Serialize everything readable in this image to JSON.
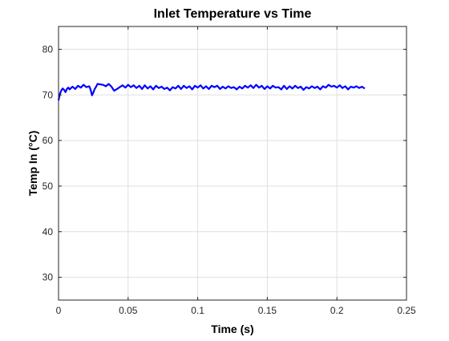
{
  "chart_data": {
    "type": "line",
    "title": "Inlet Temperature vs Time",
    "xlabel": "Time (s)",
    "ylabel": "Temp In (°C)",
    "xlim": [
      0,
      0.25
    ],
    "ylim": [
      25,
      85
    ],
    "xticks": [
      0,
      0.05,
      0.1,
      0.15,
      0.2,
      0.25
    ],
    "xtick_labels": [
      "0",
      "0.05",
      "0.1",
      "0.15",
      "0.2",
      "0.25"
    ],
    "yticks": [
      30,
      40,
      50,
      60,
      70,
      80
    ],
    "ytick_labels": [
      "30",
      "40",
      "50",
      "60",
      "70",
      "80"
    ],
    "grid": true,
    "series": [
      {
        "color": "#0000ff",
        "x": [
          0,
          0.001,
          0.002,
          0.003,
          0.004,
          0.005,
          0.006,
          0.007,
          0.008,
          0.009,
          0.01,
          0.012,
          0.014,
          0.016,
          0.018,
          0.02,
          0.022,
          0.023,
          0.024,
          0.025,
          0.026,
          0.027,
          0.028,
          0.03,
          0.032,
          0.034,
          0.036,
          0.038,
          0.04,
          0.042,
          0.044,
          0.046,
          0.048,
          0.05,
          0.052,
          0.054,
          0.056,
          0.058,
          0.06,
          0.062,
          0.064,
          0.066,
          0.068,
          0.07,
          0.072,
          0.074,
          0.076,
          0.078,
          0.08,
          0.082,
          0.084,
          0.086,
          0.088,
          0.09,
          0.092,
          0.094,
          0.096,
          0.098,
          0.1,
          0.102,
          0.104,
          0.106,
          0.108,
          0.11,
          0.112,
          0.114,
          0.116,
          0.118,
          0.12,
          0.122,
          0.124,
          0.126,
          0.128,
          0.13,
          0.132,
          0.134,
          0.136,
          0.138,
          0.14,
          0.142,
          0.144,
          0.146,
          0.148,
          0.15,
          0.152,
          0.154,
          0.156,
          0.158,
          0.16,
          0.162,
          0.164,
          0.166,
          0.168,
          0.17,
          0.172,
          0.174,
          0.176,
          0.178,
          0.18,
          0.182,
          0.184,
          0.186,
          0.188,
          0.19,
          0.192,
          0.194,
          0.196,
          0.198,
          0.2,
          0.202,
          0.204,
          0.206,
          0.208,
          0.21,
          0.212,
          0.214,
          0.216,
          0.218,
          0.22
        ],
        "y": [
          68.8,
          70.2,
          71.0,
          71.4,
          71.1,
          70.6,
          71.3,
          71.6,
          71.2,
          71.5,
          71.8,
          71.3,
          72.0,
          71.6,
          72.2,
          71.7,
          71.9,
          71.2,
          69.9,
          70.5,
          71.3,
          71.8,
          72.4,
          72.3,
          72.2,
          71.9,
          72.4,
          71.8,
          70.9,
          71.3,
          71.7,
          72.1,
          71.6,
          72.2,
          71.7,
          72.1,
          71.5,
          72.0,
          71.3,
          72.1,
          71.4,
          71.9,
          71.2,
          72.0,
          71.5,
          71.8,
          71.3,
          71.6,
          71.0,
          71.7,
          71.4,
          72.0,
          71.3,
          72.0,
          71.5,
          71.9,
          71.2,
          72.0,
          71.6,
          72.1,
          71.4,
          71.9,
          71.3,
          72.0,
          71.7,
          72.0,
          71.3,
          71.8,
          71.4,
          71.9,
          71.5,
          71.7,
          71.2,
          71.8,
          71.4,
          72.0,
          71.6,
          72.1,
          71.5,
          72.2,
          71.6,
          72.0,
          71.3,
          71.9,
          71.4,
          72.0,
          71.6,
          71.7,
          71.2,
          72.0,
          71.3,
          71.9,
          71.4,
          72.0,
          71.5,
          71.8,
          71.1,
          71.7,
          71.4,
          71.9,
          71.5,
          71.8,
          71.2,
          71.9,
          71.6,
          72.2,
          71.8,
          72.0,
          71.6,
          72.1,
          71.5,
          71.9,
          71.2,
          71.8,
          71.6,
          71.9,
          71.5,
          71.8,
          71.4
        ]
      }
    ]
  }
}
